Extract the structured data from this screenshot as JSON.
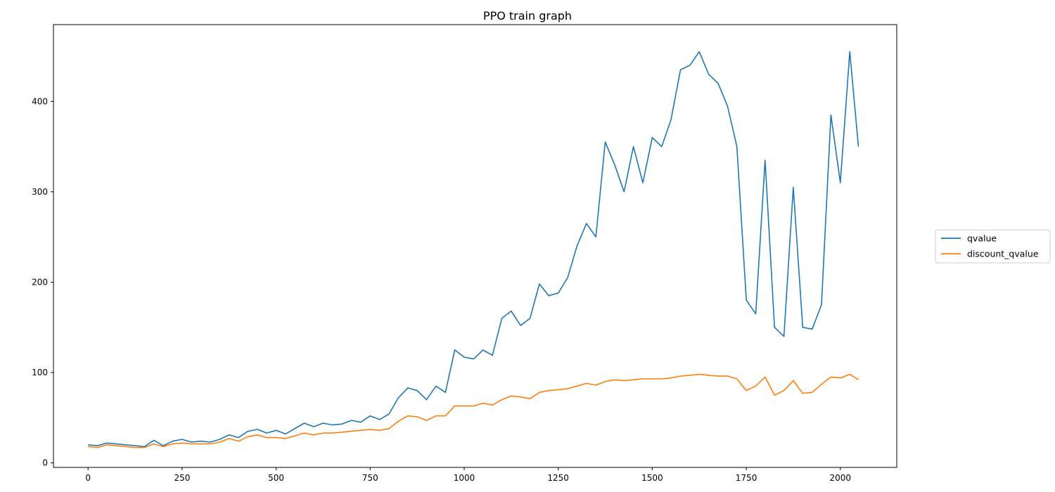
{
  "chart_data": {
    "type": "line",
    "title": "PPO train graph",
    "xlabel": "",
    "ylabel": "",
    "xlim": [
      -92,
      2150
    ],
    "ylim": [
      -5,
      485
    ],
    "xticks": [
      0,
      250,
      500,
      750,
      1000,
      1250,
      1500,
      1750,
      2000
    ],
    "yticks": [
      0,
      100,
      200,
      300,
      400
    ],
    "grid": false,
    "legend": "right",
    "series": [
      {
        "name": "qvalue",
        "color": "#1f77b4",
        "x": [
          0,
          25,
          50,
          75,
          100,
          125,
          150,
          175,
          200,
          225,
          250,
          275,
          300,
          325,
          350,
          375,
          400,
          425,
          450,
          475,
          500,
          525,
          550,
          575,
          600,
          625,
          650,
          675,
          700,
          725,
          750,
          775,
          800,
          825,
          850,
          875,
          900,
          925,
          950,
          975,
          1000,
          1025,
          1050,
          1075,
          1100,
          1125,
          1150,
          1175,
          1200,
          1225,
          1250,
          1275,
          1300,
          1325,
          1350,
          1375,
          1400,
          1425,
          1450,
          1475,
          1500,
          1525,
          1550,
          1575,
          1600,
          1625,
          1650,
          1675,
          1700,
          1725,
          1750,
          1775,
          1800,
          1825,
          1850,
          1875,
          1900,
          1925,
          1950,
          1975,
          2000,
          2025,
          2048
        ],
        "y": [
          20,
          19,
          22,
          21,
          20,
          19,
          18,
          25,
          19,
          24,
          26,
          23,
          24,
          23,
          26,
          31,
          28,
          35,
          37,
          33,
          36,
          32,
          38,
          44,
          40,
          44,
          42,
          43,
          47,
          45,
          52,
          48,
          54,
          72,
          83,
          80,
          70,
          85,
          78,
          125,
          117,
          115,
          125,
          119,
          160,
          168,
          152,
          160,
          198,
          185,
          188,
          205,
          240,
          265,
          250,
          355,
          330,
          300,
          350,
          310,
          360,
          350,
          380,
          435,
          440,
          455,
          430,
          420,
          395,
          350,
          180,
          165,
          335,
          150,
          140,
          305,
          150,
          148,
          175,
          385,
          310,
          455,
          350
        ]
      },
      {
        "name": "discount_qvalue",
        "color": "#ff7f0e",
        "x": [
          0,
          25,
          50,
          75,
          100,
          125,
          150,
          175,
          200,
          225,
          250,
          275,
          300,
          325,
          350,
          375,
          400,
          425,
          450,
          475,
          500,
          525,
          550,
          575,
          600,
          625,
          650,
          675,
          700,
          725,
          750,
          775,
          800,
          825,
          850,
          875,
          900,
          925,
          950,
          975,
          1000,
          1025,
          1050,
          1075,
          1100,
          1125,
          1150,
          1175,
          1200,
          1225,
          1250,
          1275,
          1300,
          1325,
          1350,
          1375,
          1400,
          1425,
          1450,
          1475,
          1500,
          1525,
          1550,
          1575,
          1600,
          1625,
          1650,
          1675,
          1700,
          1725,
          1750,
          1775,
          1800,
          1825,
          1850,
          1875,
          1900,
          1925,
          1950,
          1975,
          2000,
          2025,
          2048
        ],
        "y": [
          18,
          17,
          20,
          19,
          18,
          17,
          17,
          21,
          18,
          21,
          22,
          21,
          21,
          21,
          23,
          27,
          24,
          29,
          31,
          28,
          28,
          27,
          30,
          33,
          31,
          33,
          33,
          34,
          35,
          36,
          37,
          36,
          38,
          46,
          52,
          51,
          47,
          52,
          52,
          63,
          63,
          63,
          66,
          64,
          70,
          74,
          73,
          71,
          78,
          80,
          81,
          82,
          85,
          88,
          86,
          90,
          92,
          91,
          92,
          93,
          93,
          93,
          94,
          96,
          97,
          98,
          97,
          96,
          96,
          93,
          80,
          85,
          95,
          75,
          80,
          91,
          77,
          78,
          87,
          95,
          94,
          98,
          92
        ]
      }
    ]
  }
}
